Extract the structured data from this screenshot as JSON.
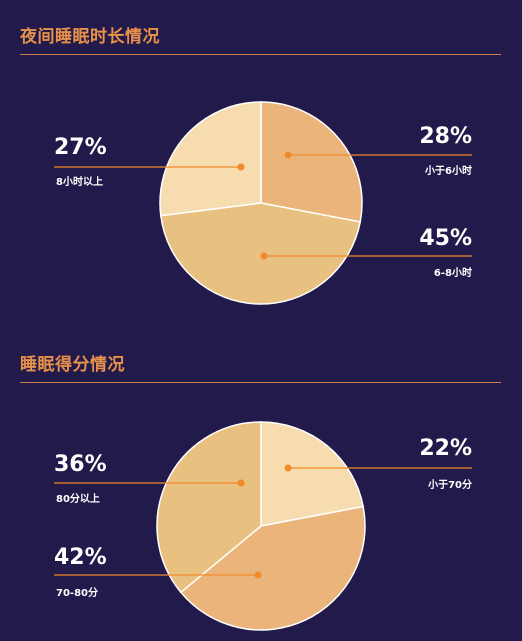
{
  "colors": {
    "background": "#211a4a",
    "accent": "#e8914a",
    "leader": "#f08a2a",
    "slice_light": "#f6dcae",
    "slice_mid": "#e8c080",
    "slice_orange": "#ebb47a"
  },
  "chart_data": [
    {
      "type": "pie",
      "title": "夜间睡眠时长情况",
      "slices": [
        {
          "label": "小于6小时",
          "value": 28,
          "display": "28%"
        },
        {
          "label": "6-8小时",
          "value": 45,
          "display": "45%"
        },
        {
          "label": "8小时以上",
          "value": 27,
          "display": "27%"
        }
      ]
    },
    {
      "type": "pie",
      "title": "睡眠得分情况",
      "slices": [
        {
          "label": "小于70分",
          "value": 22,
          "display": "22%"
        },
        {
          "label": "70-80分",
          "value": 42,
          "display": "42%"
        },
        {
          "label": "80分以上",
          "value": 36,
          "display": "36%"
        }
      ]
    }
  ]
}
